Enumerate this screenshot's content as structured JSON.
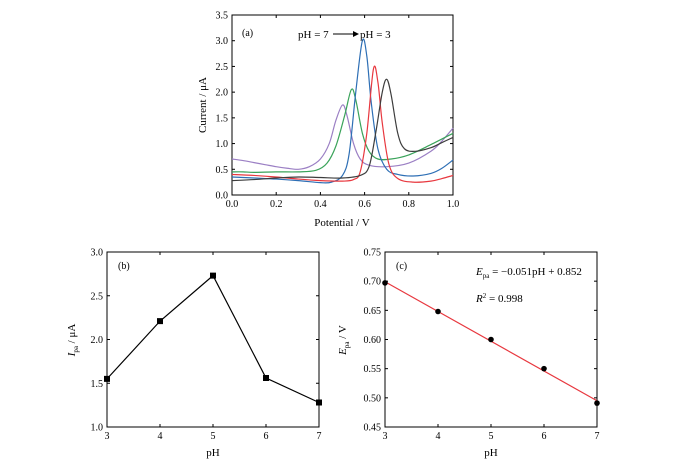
{
  "chart_data": [
    {
      "type": "line",
      "panel_label": "(a)",
      "annotation_left": "pH = 7",
      "annotation_right": "pH = 3",
      "xlabel": "Potential / V",
      "ylabel": "Current / μA",
      "xlim": [
        0.0,
        1.0
      ],
      "ylim": [
        0.0,
        3.5
      ],
      "xticks": [
        "0.0",
        "0.2",
        "0.4",
        "0.6",
        "0.8",
        "1.0"
      ],
      "yticks": [
        "0.0",
        "0.5",
        "1.0",
        "1.5",
        "2.0",
        "2.5",
        "3.0",
        "3.5"
      ],
      "series": [
        {
          "color": "#9b7fc4",
          "points": [
            [
              0.0,
              0.7
            ],
            [
              0.05,
              0.67
            ],
            [
              0.1,
              0.63
            ],
            [
              0.15,
              0.59
            ],
            [
              0.2,
              0.55
            ],
            [
              0.25,
              0.52
            ],
            [
              0.3,
              0.5
            ],
            [
              0.35,
              0.55
            ],
            [
              0.4,
              0.7
            ],
            [
              0.44,
              1.0
            ],
            [
              0.47,
              1.45
            ],
            [
              0.5,
              1.75
            ],
            [
              0.52,
              1.55
            ],
            [
              0.55,
              1.0
            ],
            [
              0.58,
              0.7
            ],
            [
              0.62,
              0.58
            ],
            [
              0.7,
              0.55
            ],
            [
              0.8,
              0.62
            ],
            [
              0.9,
              0.85
            ],
            [
              0.95,
              1.05
            ],
            [
              1.0,
              1.3
            ]
          ]
        },
        {
          "color": "#3aa35a",
          "points": [
            [
              0.0,
              0.45
            ],
            [
              0.05,
              0.45
            ],
            [
              0.1,
              0.44
            ],
            [
              0.2,
              0.45
            ],
            [
              0.3,
              0.45
            ],
            [
              0.38,
              0.48
            ],
            [
              0.43,
              0.62
            ],
            [
              0.47,
              0.95
            ],
            [
              0.51,
              1.55
            ],
            [
              0.54,
              2.05
            ],
            [
              0.56,
              1.85
            ],
            [
              0.59,
              1.2
            ],
            [
              0.62,
              0.85
            ],
            [
              0.66,
              0.7
            ],
            [
              0.72,
              0.7
            ],
            [
              0.8,
              0.78
            ],
            [
              0.9,
              0.98
            ],
            [
              1.0,
              1.2
            ]
          ]
        },
        {
          "color": "#2e6fb5",
          "points": [
            [
              0.0,
              0.35
            ],
            [
              0.1,
              0.33
            ],
            [
              0.2,
              0.31
            ],
            [
              0.3,
              0.28
            ],
            [
              0.4,
              0.24
            ],
            [
              0.45,
              0.25
            ],
            [
              0.5,
              0.38
            ],
            [
              0.53,
              0.8
            ],
            [
              0.56,
              2.0
            ],
            [
              0.59,
              3.0
            ],
            [
              0.61,
              2.7
            ],
            [
              0.63,
              1.8
            ],
            [
              0.66,
              0.9
            ],
            [
              0.7,
              0.5
            ],
            [
              0.75,
              0.4
            ],
            [
              0.82,
              0.37
            ],
            [
              0.9,
              0.42
            ],
            [
              0.95,
              0.52
            ],
            [
              1.0,
              0.68
            ]
          ]
        },
        {
          "color": "#e8383f",
          "points": [
            [
              0.0,
              0.4
            ],
            [
              0.1,
              0.38
            ],
            [
              0.2,
              0.35
            ],
            [
              0.3,
              0.31
            ],
            [
              0.4,
              0.28
            ],
            [
              0.5,
              0.27
            ],
            [
              0.55,
              0.3
            ],
            [
              0.58,
              0.45
            ],
            [
              0.61,
              1.2
            ],
            [
              0.64,
              2.45
            ],
            [
              0.66,
              2.2
            ],
            [
              0.68,
              1.4
            ],
            [
              0.71,
              0.6
            ],
            [
              0.75,
              0.32
            ],
            [
              0.82,
              0.25
            ],
            [
              0.9,
              0.27
            ],
            [
              0.95,
              0.32
            ],
            [
              1.0,
              0.38
            ]
          ]
        },
        {
          "color": "#3d3d3d",
          "points": [
            [
              0.0,
              0.28
            ],
            [
              0.1,
              0.3
            ],
            [
              0.2,
              0.33
            ],
            [
              0.3,
              0.35
            ],
            [
              0.4,
              0.34
            ],
            [
              0.5,
              0.33
            ],
            [
              0.58,
              0.38
            ],
            [
              0.62,
              0.55
            ],
            [
              0.65,
              1.2
            ],
            [
              0.68,
              2.0
            ],
            [
              0.7,
              2.25
            ],
            [
              0.72,
              1.95
            ],
            [
              0.75,
              1.2
            ],
            [
              0.78,
              0.9
            ],
            [
              0.83,
              0.85
            ],
            [
              0.9,
              0.92
            ],
            [
              0.95,
              1.02
            ],
            [
              1.0,
              1.12
            ]
          ]
        }
      ]
    },
    {
      "type": "line",
      "panel_label": "(b)",
      "xlabel": "pH",
      "ylabel_main": "I",
      "ylabel_sub": "pa",
      "ylabel_unit": " / μA",
      "xlim": [
        3,
        7
      ],
      "ylim": [
        1.0,
        3.0
      ],
      "xticks": [
        "3",
        "4",
        "5",
        "6",
        "7"
      ],
      "yticks": [
        "1.0",
        "1.5",
        "2.0",
        "2.5",
        "3.0"
      ],
      "x": [
        3,
        4,
        5,
        6,
        7
      ],
      "y": [
        1.55,
        2.21,
        2.73,
        1.56,
        1.28
      ]
    },
    {
      "type": "scatter",
      "panel_label": "(c)",
      "xlabel": "pH",
      "ylabel_main": "E",
      "ylabel_sub": "pa",
      "ylabel_unit": " / V",
      "eq_main": "E",
      "eq_sub": "pa",
      "eq_rest": " = −0.051pH + 0.852",
      "r2_main": "R",
      "r2_sup": "2",
      "r2_rest": " = 0.998",
      "fit_color": "#e8383f",
      "fit": {
        "slope": -0.051,
        "intercept": 0.852
      },
      "xlim": [
        3,
        7
      ],
      "ylim": [
        0.45,
        0.75
      ],
      "xticks": [
        "3",
        "4",
        "5",
        "6",
        "7"
      ],
      "yticks": [
        "0.45",
        "0.50",
        "0.55",
        "0.60",
        "0.65",
        "0.70",
        "0.75"
      ],
      "x": [
        3,
        4,
        5,
        6,
        7
      ],
      "y": [
        0.697,
        0.648,
        0.6,
        0.55,
        0.491
      ]
    }
  ]
}
